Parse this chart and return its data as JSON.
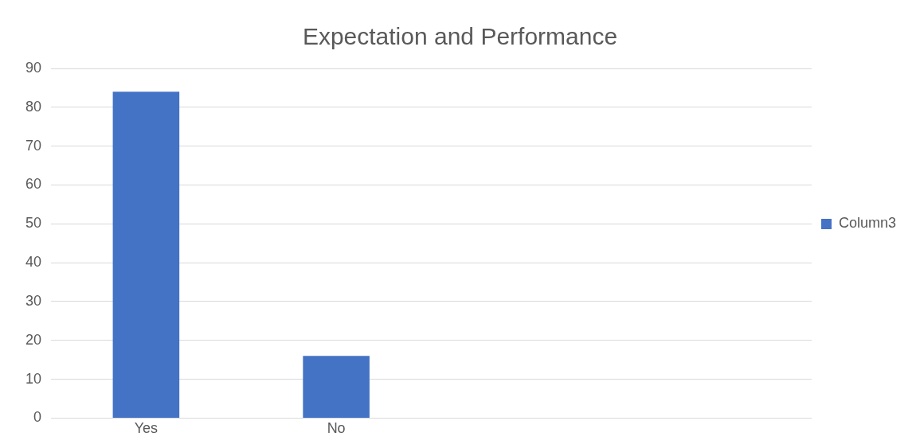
{
  "chart_data": {
    "type": "bar",
    "title": "Expectation and Performance",
    "categories": [
      "Yes",
      "No",
      null,
      null
    ],
    "series": [
      {
        "name": "Column3",
        "color": "#4472c4",
        "values": [
          84,
          16,
          null,
          null
        ]
      }
    ],
    "ylim": [
      0,
      90
    ],
    "yticks": [
      0,
      10,
      20,
      30,
      40,
      50,
      60,
      70,
      80,
      90
    ],
    "grid": "y",
    "legend": "right"
  }
}
